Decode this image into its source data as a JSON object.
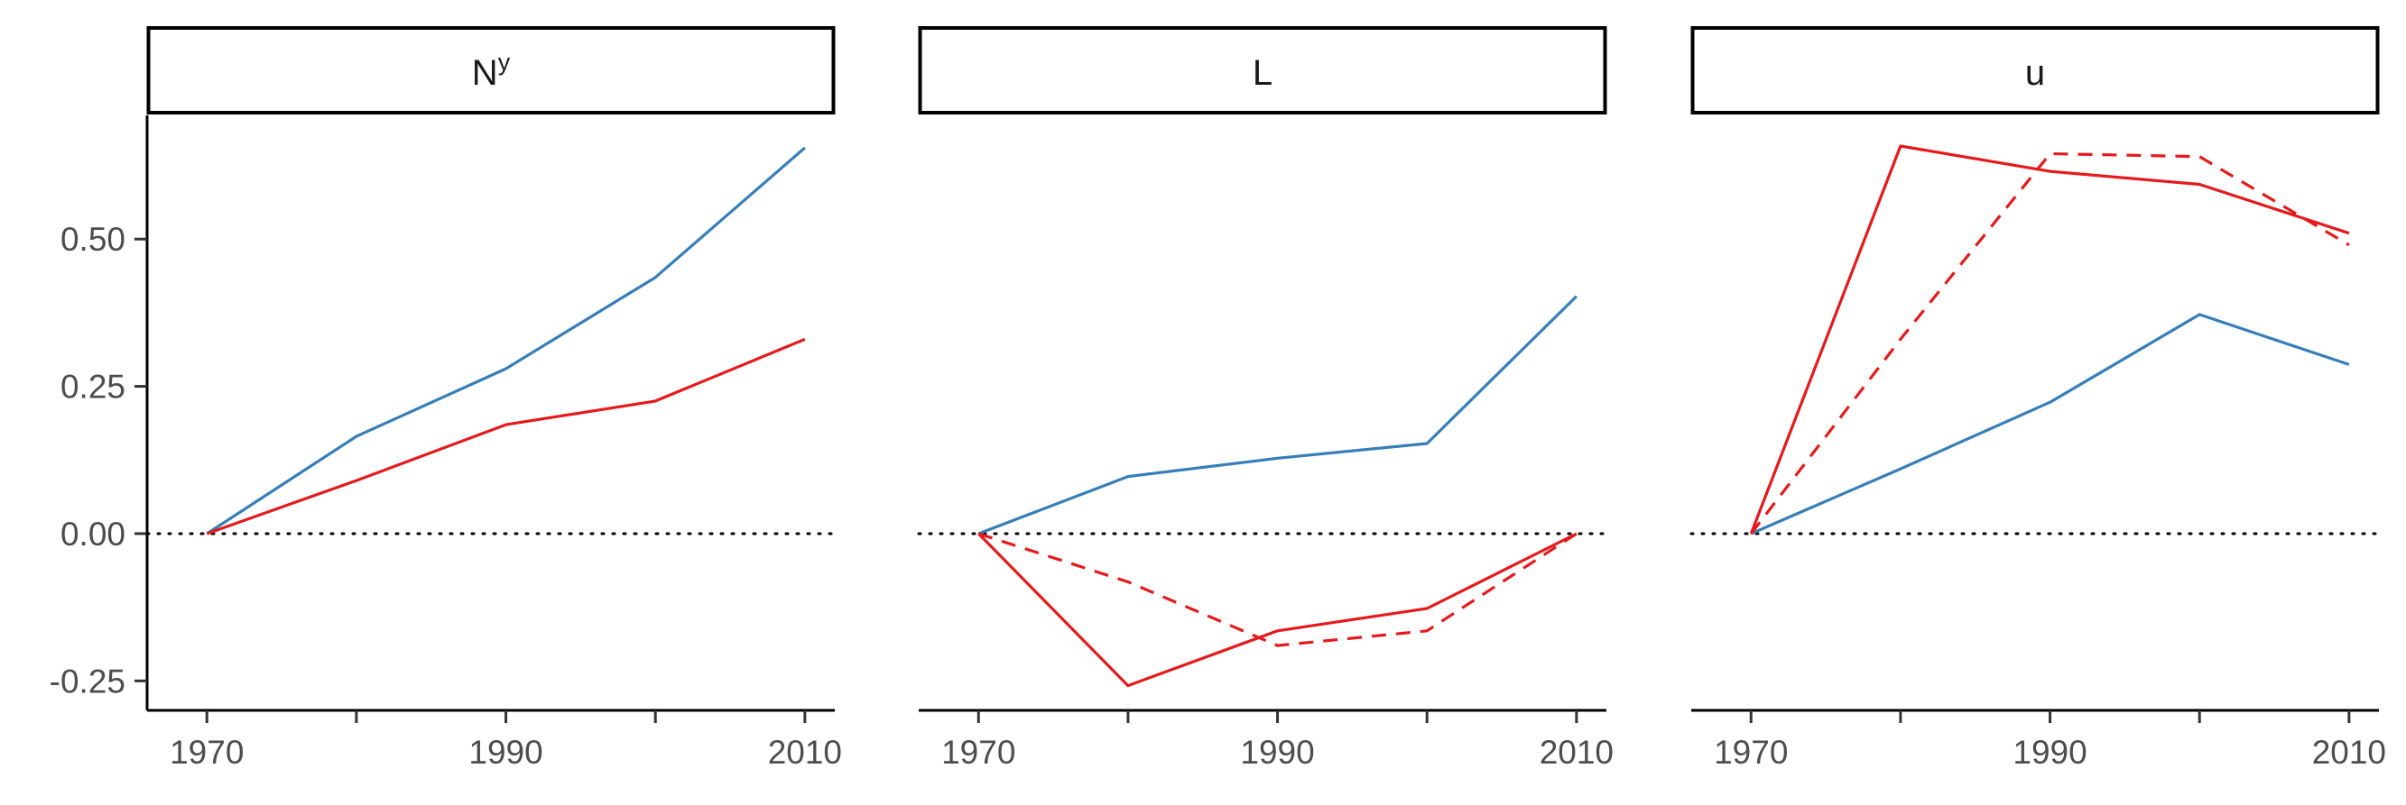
{
  "chart_data": {
    "type": "line",
    "layout": "facet-row",
    "x_ticks": [
      1970,
      1990,
      2010
    ],
    "x_minor_ticks": [
      1970,
      1980,
      1990,
      2000,
      2010
    ],
    "xlim": [
      1966,
      2012
    ],
    "ylim": [
      -0.3,
      0.71
    ],
    "y_ticks": [
      0.5,
      0.25,
      0.0,
      -0.25
    ],
    "y_tick_labels": [
      "0.50",
      "0.25",
      "0.00",
      "-0.25"
    ],
    "reference_line": {
      "y": 0,
      "style": "dotted"
    },
    "grid": false,
    "legend": "none",
    "colors": {
      "blue": "#377eb8",
      "red": "#e41a1c"
    },
    "panels": [
      {
        "strip_label": "N",
        "strip_superscript": "y",
        "series": [
          {
            "color": "#377eb8",
            "dash": "solid",
            "x": [
              1970,
              1980,
              1990,
              2000,
              2010
            ],
            "y": [
              0.0,
              0.165,
              0.28,
              0.435,
              0.655
            ]
          },
          {
            "color": "#e41a1c",
            "dash": "solid",
            "x": [
              1970,
              1980,
              1990,
              2000,
              2010
            ],
            "y": [
              0.0,
              0.09,
              0.185,
              0.225,
              0.33
            ]
          }
        ]
      },
      {
        "strip_label": "L",
        "strip_superscript": "",
        "series": [
          {
            "color": "#377eb8",
            "dash": "solid",
            "x": [
              1970,
              1980,
              1990,
              2000,
              2010
            ],
            "y": [
              0.0,
              0.097,
              0.128,
              0.153,
              0.403
            ]
          },
          {
            "color": "#e41a1c",
            "dash": "solid",
            "x": [
              1970,
              1980,
              1990,
              2000,
              2010
            ],
            "y": [
              0.0,
              -0.258,
              -0.165,
              -0.127,
              0.0
            ]
          },
          {
            "color": "#e41a1c",
            "dash": "dashed",
            "x": [
              1970,
              1980,
              1990,
              2000,
              2010
            ],
            "y": [
              0.0,
              -0.082,
              -0.19,
              -0.165,
              0.0
            ]
          }
        ]
      },
      {
        "strip_label": "u",
        "strip_superscript": "",
        "series": [
          {
            "color": "#377eb8",
            "dash": "solid",
            "x": [
              1970,
              1980,
              1990,
              2000,
              2010
            ],
            "y": [
              0.0,
              0.11,
              0.223,
              0.372,
              0.287
            ]
          },
          {
            "color": "#e41a1c",
            "dash": "solid",
            "x": [
              1970,
              1980,
              1990,
              2000,
              2010
            ],
            "y": [
              0.0,
              0.658,
              0.615,
              0.593,
              0.51
            ]
          },
          {
            "color": "#e41a1c",
            "dash": "dashed",
            "x": [
              1970,
              1980,
              1990,
              2000,
              2010
            ],
            "y": [
              0.0,
              0.33,
              0.645,
              0.64,
              0.49
            ]
          }
        ]
      }
    ]
  }
}
